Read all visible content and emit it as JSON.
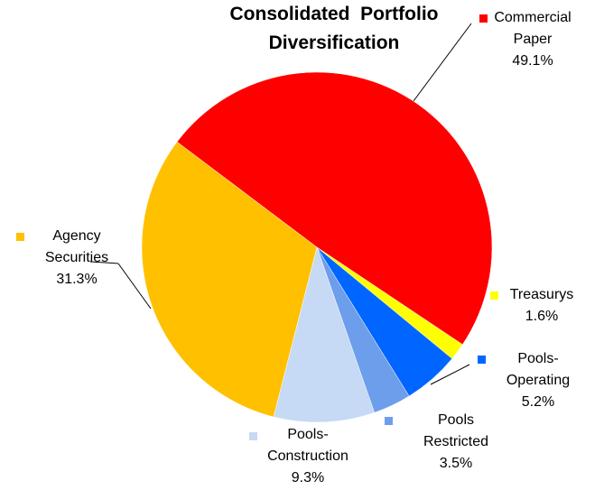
{
  "chart_data": {
    "type": "pie",
    "title": "Consolidated  Portfolio Diversification",
    "categories": [
      "Commercial Paper",
      "Treasurys",
      "Pools-Operating",
      "Pools Restricted",
      "Pools-Construction",
      "Agency Securities"
    ],
    "values": [
      49.1,
      1.6,
      5.2,
      3.5,
      9.3,
      31.3
    ],
    "value_labels": [
      "49.1%",
      "1.6%",
      "5.2%",
      "3.5%",
      "9.3%",
      "31.3%"
    ],
    "colors": [
      "#ff0000",
      "#ffff00",
      "#0066ff",
      "#6d9eeb",
      "#c6d9f5",
      "#ffc000"
    ]
  }
}
